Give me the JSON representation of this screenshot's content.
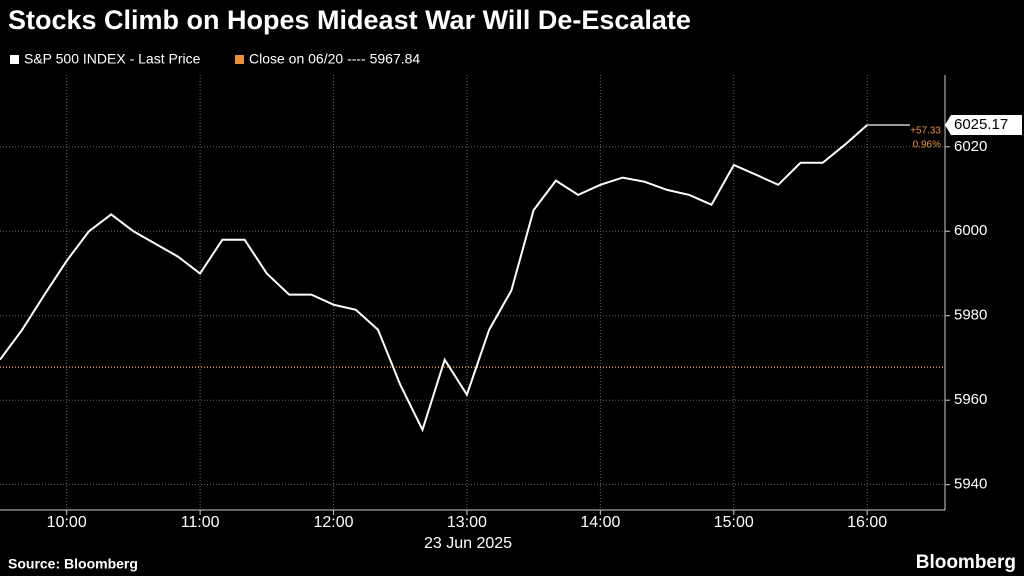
{
  "chart_data": {
    "type": "line",
    "title": "Stocks Climb on Hopes Mideast War Will De-Escalate",
    "x_label": "23 Jun 2025",
    "source": "Source: Bloomberg",
    "brand": "Bloomberg",
    "x": [
      "09:30",
      "09:40",
      "09:50",
      "10:00",
      "10:10",
      "10:20",
      "10:30",
      "10:40",
      "10:50",
      "11:00",
      "11:10",
      "11:20",
      "11:30",
      "11:40",
      "11:50",
      "12:00",
      "12:10",
      "12:20",
      "12:30",
      "12:40",
      "12:50",
      "13:00",
      "13:10",
      "13:20",
      "13:30",
      "13:40",
      "13:50",
      "14:00",
      "14:10",
      "14:20",
      "14:30",
      "14:40",
      "14:50",
      "15:00",
      "15:10",
      "15:20",
      "15:30",
      "15:40",
      "15:50",
      "16:00"
    ],
    "series": [
      {
        "name": "S&P 500 INDEX - Last Price",
        "color": "#ffffff",
        "values": [
          5969.6,
          5976.7,
          5985,
          5993,
          6000,
          6004,
          6000,
          5997,
          5994,
          5990,
          5998,
          5998,
          5990,
          5985,
          5985,
          5982.6,
          5981.4,
          5976.7,
          5963.7,
          5953,
          5969.6,
          5961.3,
          5976.7,
          5986,
          6005,
          6012,
          6008.6,
          6011,
          6012.7,
          6011.7,
          6009.8,
          6008.6,
          6006.3,
          6015.7,
          6013.4,
          6011,
          6016.2,
          6016.2,
          6020.5,
          6025.17
        ]
      }
    ],
    "reference": {
      "name": "Close on 06/20 ---- 5967.84",
      "value": 5967.84,
      "color": "#e8913a"
    },
    "annotations": [
      "+57.33",
      "0.96%"
    ],
    "xlim": [
      "09:30",
      "16:35"
    ],
    "xticks": [
      "10:00",
      "11:00",
      "12:00",
      "13:00",
      "14:00",
      "15:00",
      "16:00"
    ],
    "ylim": [
      5934,
      6037
    ],
    "yticks": [
      5940,
      5960,
      5980,
      6000,
      6020
    ],
    "grid": true
  }
}
